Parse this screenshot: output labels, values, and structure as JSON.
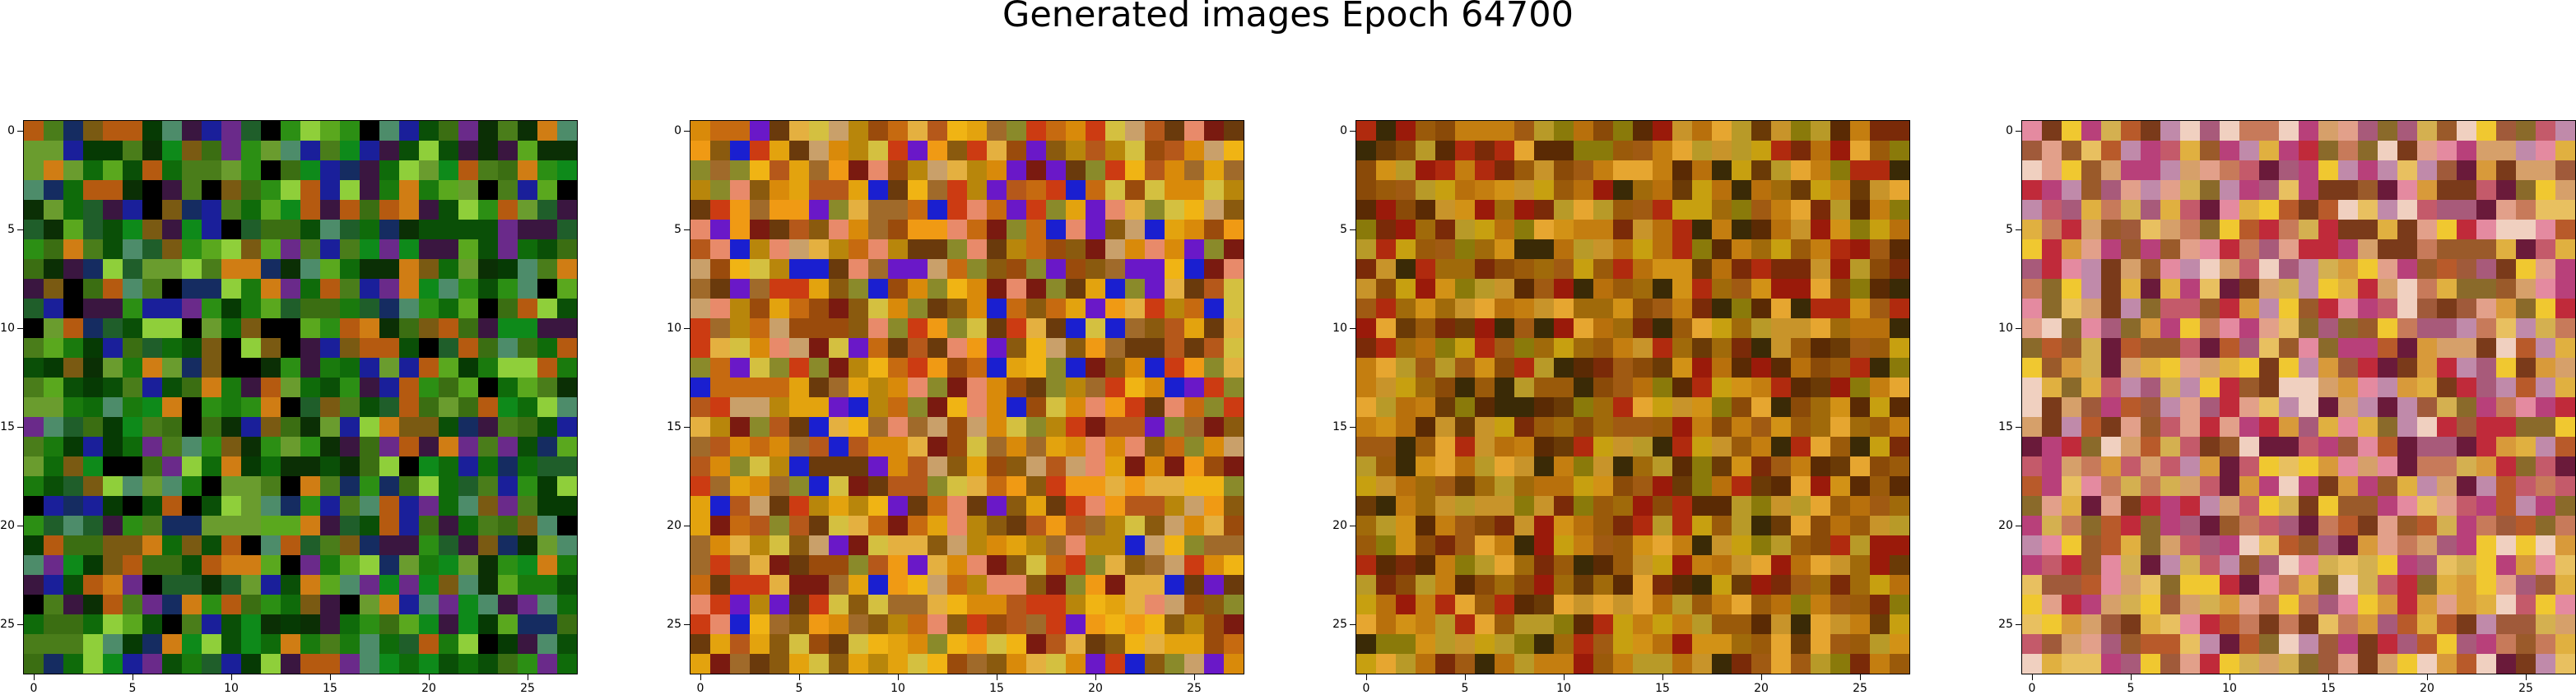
{
  "figure": {
    "title": "Generated images Epoch 64700"
  },
  "panels": [
    {
      "name": "generated-image-1",
      "palette": "green"
    },
    {
      "name": "generated-image-2",
      "palette": "orange-blue"
    },
    {
      "name": "generated-image-3",
      "palette": "brown-red"
    },
    {
      "name": "generated-image-4",
      "palette": "pink-yellow"
    }
  ],
  "axes": {
    "ticks": [
      0,
      5,
      10,
      15,
      20,
      25
    ],
    "tick_labels": [
      "0",
      "5",
      "10",
      "15",
      "20",
      "25"
    ]
  },
  "palettes": {
    "green": [
      "#0f6b0a",
      "#1a7a0d",
      "#0a4f07",
      "#063a04",
      "#2c8f14",
      "#5aa81e",
      "#4a7d1a",
      "#1f5e2a",
      "#0b2f05",
      "#6a9c2e",
      "#3b6e12",
      "#0e8a1a",
      "#8fcf3a",
      "#152c61",
      "#b55a10",
      "#3a1640",
      "#6a2a8a",
      "#000000",
      "#1a1f9a",
      "#4d8c6a",
      "#d07d14",
      "#7a5a12"
    ],
    "orange-blue": [
      "#d98a0a",
      "#c66a10",
      "#e3a30e",
      "#b5581a",
      "#9a4b0c",
      "#cc3b12",
      "#f0b414",
      "#8a5a0e",
      "#6a3a0c",
      "#c9a06a",
      "#1a1fd0",
      "#6a18c8",
      "#e88a6a",
      "#b8860b",
      "#e4b040",
      "#a06a2a",
      "#7a1a10",
      "#d4c040",
      "#8a8a2a",
      "#f09a14"
    ],
    "brown-red": [
      "#b8700c",
      "#9a5a0a",
      "#c47e10",
      "#8a4a08",
      "#a05a12",
      "#7a2a08",
      "#c7a010",
      "#6a3a06",
      "#b02a0e",
      "#a06a0a",
      "#d29216",
      "#5a2a04",
      "#8a7a0a",
      "#c8942a",
      "#e6a630",
      "#3a2a06",
      "#9a1a0a",
      "#b89a28"
    ],
    "pink-yellow": [
      "#d89a3a",
      "#c77a5a",
      "#e0b040",
      "#b85a2a",
      "#a05a3a",
      "#d6a06a",
      "#e8c060",
      "#9a5a2a",
      "#c45a6a",
      "#e48aa0",
      "#b8407a",
      "#f0d0c0",
      "#6a1a3a",
      "#c02a3a",
      "#8a6a2a",
      "#d4b050",
      "#a85a7a",
      "#e2a08a",
      "#7a3a1a",
      "#f0c830",
      "#c08aaa"
    ]
  }
}
